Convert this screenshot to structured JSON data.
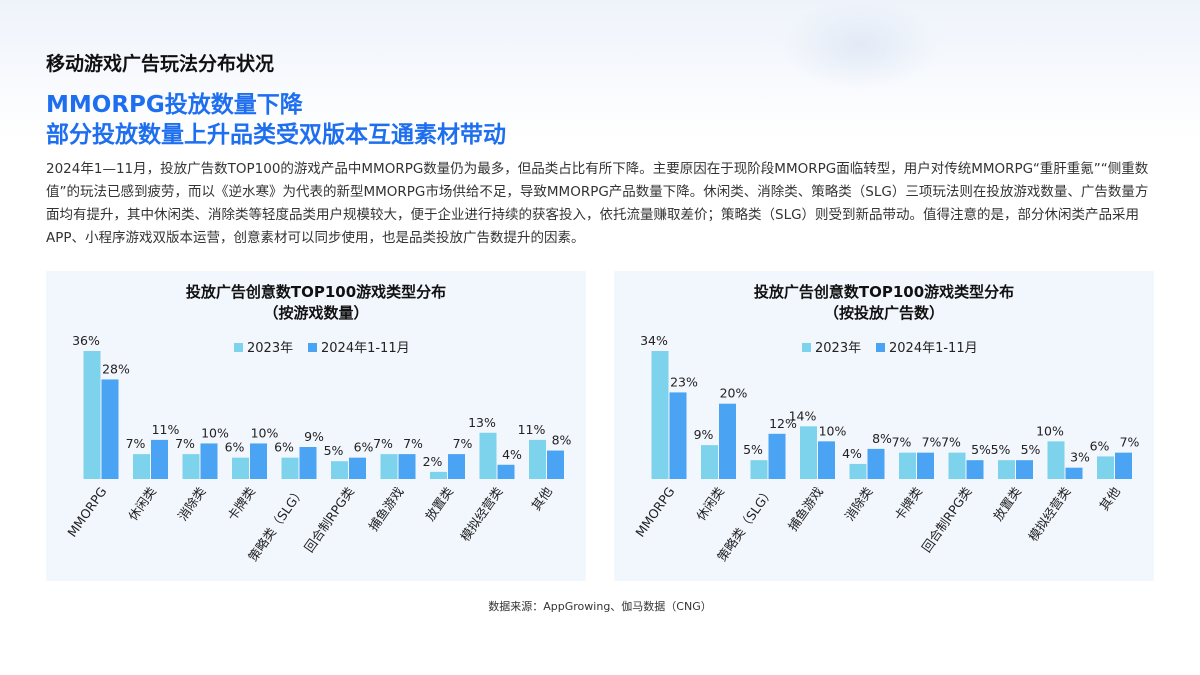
{
  "section_title": "移动游戏广告玩法分布状况",
  "headline": {
    "line1": "MMORPG投放数量下降",
    "line2": "部分投放数量上升品类受双版本互通素材带动"
  },
  "body_text": "2024年1—11月，投放广告数TOP100的游戏产品中MMORPG数量仍为最多，但品类占比有所下降。主要原因在于现阶段MMORPG面临转型，用户对传统MMORPG“重肝重氪”“侧重数值”的玩法已感到疲劳，而以《逆水寒》为代表的新型MMORPG市场供给不足，导致MMORPG产品数量下降。休闲类、消除类、策略类（SLG）三项玩法则在投放游戏数量、广告数量方面均有提升，其中休闲类、消除类等轻度品类用户规模较大，便于企业进行持续的获客投入，依托流量赚取差价；策略类（SLG）则受到新品带动。值得注意的是，部分休闲类产品采用APP、小程序游戏双版本运营，创意素材可以同步使用，也是品类投放广告数提升的因素。",
  "source": "数据来源：AppGrowing、伽马数据（CNG）",
  "colors": {
    "series_2023": "#7dd3ec",
    "series_2024": "#4aa3f3",
    "accent": "#1e6ff0"
  },
  "chart_data": [
    {
      "type": "bar",
      "title": "投放广告创意数TOP100游戏类型分布",
      "subtitle": "（按游戏数量）",
      "categories": [
        "MMORPG",
        "休闲类",
        "消除类",
        "卡牌类",
        "策略类（SLG）",
        "回合制RPG类",
        "捕鱼游戏",
        "放置类",
        "模拟经营类",
        "其他"
      ],
      "series": [
        {
          "name": "2023年",
          "values": [
            36,
            7,
            7,
            6,
            6,
            5,
            7,
            2,
            13,
            11
          ]
        },
        {
          "name": "2024年1-11月",
          "values": [
            28,
            11,
            10,
            10,
            9,
            6,
            7,
            7,
            4,
            8
          ]
        }
      ],
      "value_suffix": "%",
      "ylim": [
        0,
        36
      ],
      "legend": "top-center",
      "grid": false
    },
    {
      "type": "bar",
      "title": "投放广告创意数TOP100游戏类型分布",
      "subtitle": "（按投放广告数）",
      "categories": [
        "MMORPG",
        "休闲类",
        "策略类（SLG）",
        "捕鱼游戏",
        "消除类",
        "卡牌类",
        "回合制RPG类",
        "放置类",
        "模拟经营类",
        "其他"
      ],
      "series": [
        {
          "name": "2023年",
          "values": [
            34,
            9,
            5,
            14,
            4,
            7,
            7,
            5,
            10,
            6
          ]
        },
        {
          "name": "2024年1-11月",
          "values": [
            23,
            20,
            12,
            10,
            8,
            7,
            5,
            5,
            3,
            7
          ]
        }
      ],
      "value_suffix": "%",
      "ylim": [
        0,
        34
      ],
      "legend": "top-center",
      "grid": false
    }
  ]
}
